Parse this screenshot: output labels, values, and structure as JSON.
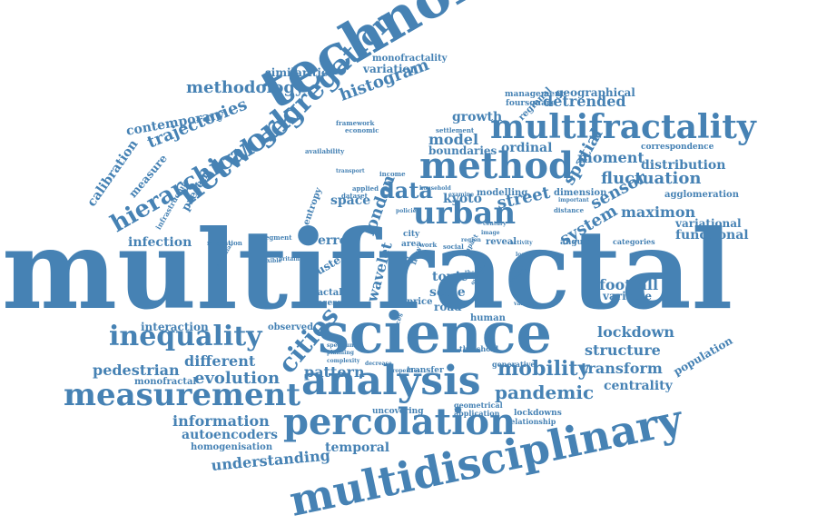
{
  "accent": "#4682b4",
  "words": [
    {
      "text": "multifractal",
      "size": 120
    },
    {
      "text": "science",
      "size": 62
    },
    {
      "text": "technology",
      "size": 60
    },
    {
      "text": "multidisciplinary",
      "size": 46
    },
    {
      "text": "analysis",
      "size": 44
    },
    {
      "text": "percolation",
      "size": 40
    },
    {
      "text": "method",
      "size": 40
    },
    {
      "text": "multifractality",
      "size": 36
    },
    {
      "text": "measurement",
      "size": 34
    },
    {
      "text": "network",
      "size": 34
    },
    {
      "text": "urban",
      "size": 34
    },
    {
      "text": "segregation",
      "size": 30
    },
    {
      "text": "inequality",
      "size": 30
    },
    {
      "text": "cities",
      "size": 28
    },
    {
      "text": "hierarchical",
      "size": 26
    },
    {
      "text": "data",
      "size": 24
    },
    {
      "text": "mobility",
      "size": 22
    },
    {
      "text": "pandemic",
      "size": 20
    },
    {
      "text": "fluctuation",
      "size": 18
    },
    {
      "text": "trajectories",
      "size": 18
    },
    {
      "text": "methodology",
      "size": 18
    },
    {
      "text": "histogram",
      "size": 18
    },
    {
      "text": "growth",
      "size": 14
    },
    {
      "text": "model",
      "size": 16
    },
    {
      "text": "detrended",
      "size": 16
    },
    {
      "text": "moment",
      "size": 16
    },
    {
      "text": "distribution",
      "size": 14
    },
    {
      "text": "sensor",
      "size": 18
    },
    {
      "text": "system",
      "size": 18
    },
    {
      "text": "spatial",
      "size": 18
    },
    {
      "text": "maximon",
      "size": 16
    },
    {
      "text": "variational",
      "size": 12
    },
    {
      "text": "functional",
      "size": 14
    },
    {
      "text": "footfall",
      "size": 16
    },
    {
      "text": "variable",
      "size": 12
    },
    {
      "text": "lockdown",
      "size": 16
    },
    {
      "text": "structure",
      "size": 16
    },
    {
      "text": "transform",
      "size": 16
    },
    {
      "text": "centrality",
      "size": 14
    },
    {
      "text": "population",
      "size": 12
    },
    {
      "text": "street",
      "size": 18
    },
    {
      "text": "london",
      "size": 18
    },
    {
      "text": "kyoto",
      "size": 14
    },
    {
      "text": "space",
      "size": 14
    },
    {
      "text": "topic",
      "size": 14
    },
    {
      "text": "scale",
      "size": 14
    },
    {
      "text": "road",
      "size": 12
    },
    {
      "text": "wavelet",
      "size": 16
    },
    {
      "text": "pattern",
      "size": 16
    },
    {
      "text": "evolution",
      "size": 18
    },
    {
      "text": "different",
      "size": 16
    },
    {
      "text": "pedestrian",
      "size": 16
    },
    {
      "text": "information",
      "size": 16
    },
    {
      "text": "autoencoders",
      "size": 14
    },
    {
      "text": "understanding",
      "size": 16
    },
    {
      "text": "temporal",
      "size": 14
    },
    {
      "text": "homogenisation",
      "size": 10
    },
    {
      "text": "monofractal",
      "size": 10
    },
    {
      "text": "interaction",
      "size": 12
    },
    {
      "text": "infection",
      "size": 14
    },
    {
      "text": "calibration",
      "size": 14
    },
    {
      "text": "contemporary",
      "size": 14
    },
    {
      "text": "similarities",
      "size": 12
    },
    {
      "text": "variation",
      "size": 12
    },
    {
      "text": "monofractality",
      "size": 10
    },
    {
      "text": "geographical",
      "size": 12
    },
    {
      "text": "correspondence",
      "size": 9
    },
    {
      "text": "ordinal",
      "size": 14
    },
    {
      "text": "boundaries",
      "size": 12
    },
    {
      "text": "modelling",
      "size": 10
    },
    {
      "text": "dimension",
      "size": 10
    },
    {
      "text": "agglomeration",
      "size": 10
    },
    {
      "text": "error",
      "size": 14
    },
    {
      "text": "fractal",
      "size": 10
    },
    {
      "text": "cluster",
      "size": 12
    },
    {
      "text": "price",
      "size": 10
    },
    {
      "text": "human",
      "size": 10
    },
    {
      "text": "reveal",
      "size": 10
    },
    {
      "text": "area",
      "size": 9
    },
    {
      "text": "city",
      "size": 9
    },
    {
      "text": "angular",
      "size": 9
    },
    {
      "text": "measure",
      "size": 12
    },
    {
      "text": "present",
      "size": 12
    },
    {
      "text": "entropy",
      "size": 10
    },
    {
      "text": "observed",
      "size": 10
    },
    {
      "text": "process",
      "size": 9
    },
    {
      "text": "categories",
      "size": 8
    },
    {
      "text": "lockdowns",
      "size": 9
    },
    {
      "text": "uncovering",
      "size": 9
    },
    {
      "text": "transfer",
      "size": 9
    },
    {
      "text": "geometrical",
      "size": 8
    },
    {
      "text": "application",
      "size": 8
    },
    {
      "text": "relationship",
      "size": 8
    },
    {
      "text": "generative",
      "size": 8
    },
    {
      "text": "threshold",
      "size": 8
    },
    {
      "text": "management",
      "size": 9
    },
    {
      "text": "foursquare",
      "size": 9
    },
    {
      "text": "regional",
      "size": 10
    },
    {
      "text": "infrastructure",
      "size": 8
    },
    {
      "text": "migration",
      "size": 7
    },
    {
      "text": "segment",
      "size": 7
    },
    {
      "text": "availability",
      "size": 7
    },
    {
      "text": "framework",
      "size": 7
    },
    {
      "text": "economic",
      "size": 7
    },
    {
      "text": "settlement",
      "size": 7
    },
    {
      "text": "household",
      "size": 6
    },
    {
      "text": "dataset",
      "size": 7
    },
    {
      "text": "applied",
      "size": 7
    },
    {
      "text": "income",
      "size": 7
    },
    {
      "text": "transport",
      "size": 6
    },
    {
      "text": "important",
      "size": 6
    },
    {
      "text": "distance",
      "size": 7
    },
    {
      "text": "policies",
      "size": 6
    },
    {
      "text": "impact",
      "size": 7
    },
    {
      "text": "location",
      "size": 6
    },
    {
      "text": "flow",
      "size": 9
    },
    {
      "text": "social",
      "size": 7
    },
    {
      "text": "work",
      "size": 7
    },
    {
      "text": "planning",
      "size": 6
    },
    {
      "text": "complexity",
      "size": 6
    },
    {
      "text": "spectrum",
      "size": 6
    },
    {
      "text": "decrease",
      "size": 6
    },
    {
      "text": "properties",
      "size": 6
    },
    {
      "text": "britain",
      "size": 6
    },
    {
      "text": "flexible",
      "size": 6
    },
    {
      "text": "particular",
      "size": 6
    },
    {
      "text": "study",
      "size": 7
    },
    {
      "text": "sources",
      "size": 7
    },
    {
      "text": "control",
      "size": 6
    },
    {
      "text": "region",
      "size": 6
    },
    {
      "text": "activity",
      "size": 6
    },
    {
      "text": "various",
      "size": 6
    },
    {
      "text": "examine",
      "size": 6
    },
    {
      "text": "century",
      "size": 6
    },
    {
      "text": "image",
      "size": 6
    },
    {
      "text": "outcome",
      "size": 6
    },
    {
      "text": "theory",
      "size": 6
    }
  ]
}
